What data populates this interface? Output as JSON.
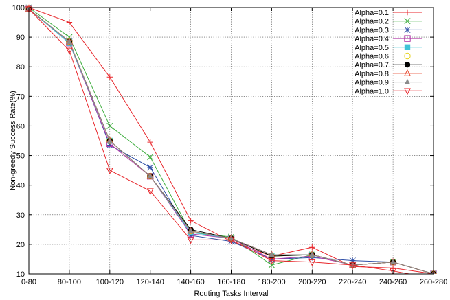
{
  "chart_data": {
    "type": "line",
    "xlabel": "Routing Tasks Interval",
    "ylabel": "Non-greedy Success Rate(%)",
    "ylim": [
      10,
      100
    ],
    "yticks": [
      10,
      20,
      30,
      40,
      50,
      60,
      70,
      80,
      90,
      100
    ],
    "grid": true,
    "legend_position": "top-right",
    "categories": [
      "0-80",
      "80-100",
      "100-120",
      "120-140",
      "140-160",
      "160-180",
      "180-200",
      "200-220",
      "220-240",
      "240-260",
      "260-280"
    ],
    "series": [
      {
        "name": "Alpha=0.1",
        "color": "#e8262b",
        "marker": "plus",
        "values": [
          100,
          95,
          76.5,
          54.5,
          28,
          21,
          16,
          19,
          12.5,
          12,
          10
        ]
      },
      {
        "name": "Alpha=0.2",
        "color": "#3fae3f",
        "marker": "x",
        "values": [
          100,
          90,
          60,
          49.5,
          24,
          22.5,
          13,
          16.5,
          13,
          14,
          10
        ]
      },
      {
        "name": "Alpha=0.3",
        "color": "#2f4fa6",
        "marker": "asterisk",
        "values": [
          99.5,
          88.5,
          53.5,
          46,
          23,
          21,
          15,
          15.5,
          14.5,
          14,
          10
        ]
      },
      {
        "name": "Alpha=0.4",
        "color": "#b23aa8",
        "marker": "square-open",
        "values": [
          99.5,
          88,
          54,
          43,
          23.5,
          22,
          15,
          16,
          13,
          14,
          10
        ]
      },
      {
        "name": "Alpha=0.5",
        "color": "#3fc3d6",
        "marker": "square-filled",
        "values": [
          99.5,
          88,
          55,
          43,
          24,
          22,
          16,
          16.5,
          13,
          14,
          10
        ]
      },
      {
        "name": "Alpha=0.6",
        "color": "#e6d21e",
        "marker": "circle-open",
        "values": [
          99.5,
          88.5,
          55,
          43,
          24.5,
          22,
          16,
          16.5,
          13,
          14,
          10
        ]
      },
      {
        "name": "Alpha=0.7",
        "color": "#000000",
        "marker": "circle-filled",
        "values": [
          99.5,
          88.5,
          55,
          43,
          25,
          22,
          16,
          16.5,
          13,
          14,
          10
        ]
      },
      {
        "name": "Alpha=0.8",
        "color": "#e8472b",
        "marker": "triangle-up-open",
        "values": [
          99.5,
          88.5,
          55,
          43,
          24.5,
          22,
          16.5,
          16.5,
          13,
          14,
          10
        ]
      },
      {
        "name": "Alpha=0.9",
        "color": "#8a8a8a",
        "marker": "triangle-up-filled",
        "values": [
          99.5,
          88.5,
          55,
          43,
          24.5,
          22,
          16.5,
          16.5,
          13,
          14,
          10
        ]
      },
      {
        "name": "Alpha=1.0",
        "color": "#e8262b",
        "marker": "triangle-down-open",
        "values": [
          99.5,
          85.5,
          45,
          38,
          21.5,
          21.5,
          14.5,
          14,
          13,
          11,
          8.5
        ]
      }
    ]
  }
}
